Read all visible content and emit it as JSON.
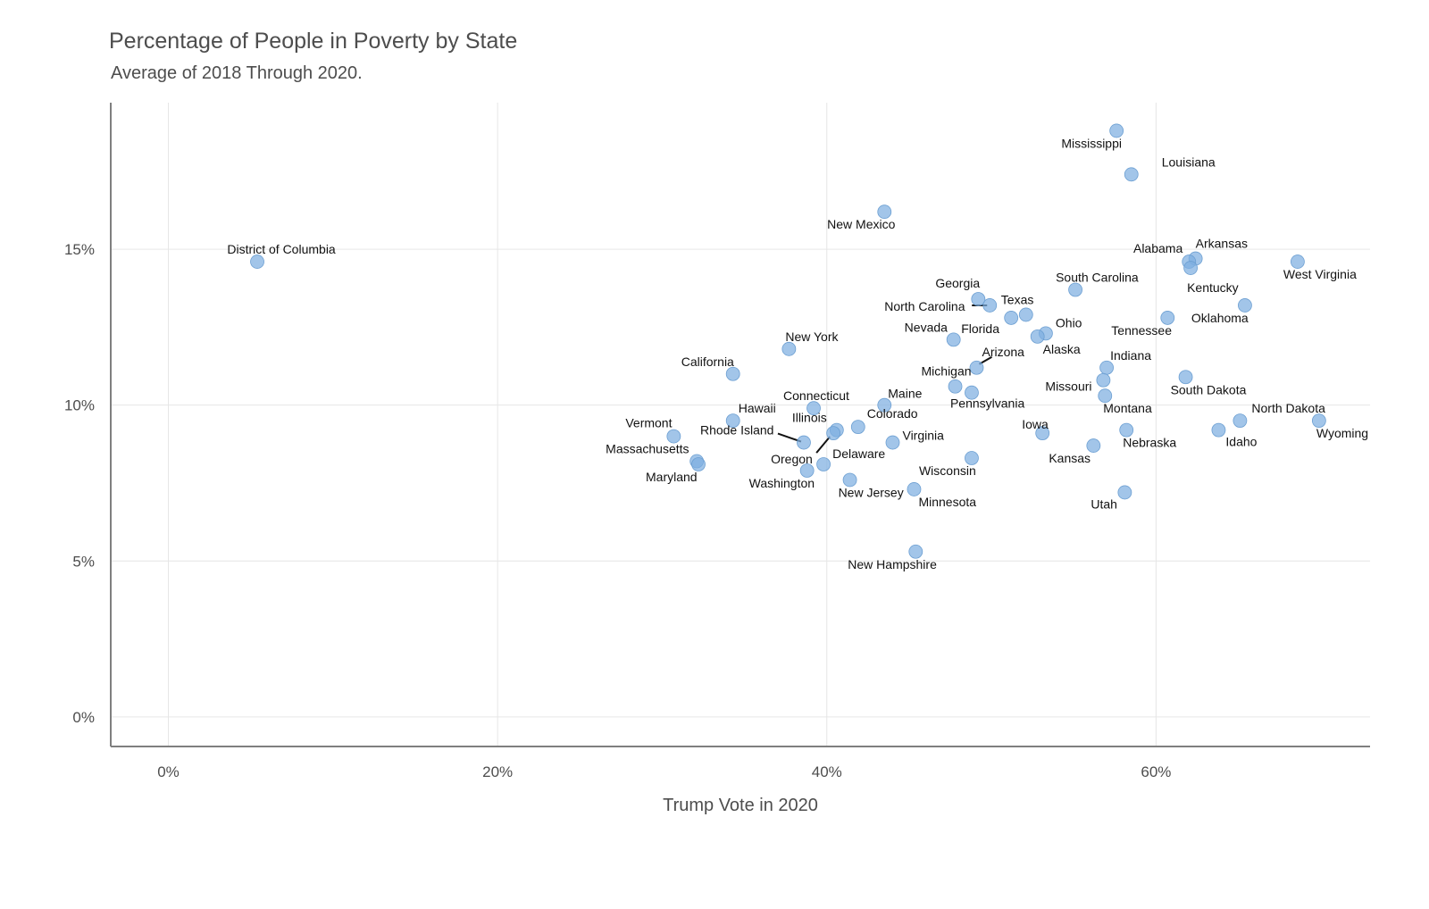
{
  "chart_data": {
    "type": "scatter",
    "title": "Percentage of People in Poverty by State",
    "subtitle": "Average of 2018 Through 2020.",
    "xlabel": "Trump Vote in 2020",
    "ylabel": "",
    "xlim": [
      -3.5,
      73
    ],
    "ylim": [
      -0.95,
      19.7
    ],
    "x_ticks": [
      {
        "value": 0,
        "label": "0%"
      },
      {
        "value": 20,
        "label": "20%"
      },
      {
        "value": 40,
        "label": "40%"
      },
      {
        "value": 60,
        "label": "60%"
      }
    ],
    "y_ticks": [
      {
        "value": 0,
        "label": "0%"
      },
      {
        "value": 5,
        "label": "5%"
      },
      {
        "value": 10,
        "label": "10%"
      },
      {
        "value": 15,
        "label": "15%"
      }
    ],
    "grid": true,
    "point_color": "#7eaee0",
    "points": [
      {
        "label": "District of Columbia",
        "x": 5.4,
        "y": 14.6
      },
      {
        "label": "Mississippi",
        "x": 57.6,
        "y": 18.8
      },
      {
        "label": "Louisiana",
        "x": 58.5,
        "y": 17.4
      },
      {
        "label": "New Mexico",
        "x": 43.5,
        "y": 16.2
      },
      {
        "label": "Arkansas",
        "x": 62.4,
        "y": 14.7
      },
      {
        "label": "Alabama",
        "x": 62.0,
        "y": 14.6
      },
      {
        "label": "Kentucky",
        "x": 62.1,
        "y": 14.4
      },
      {
        "label": "West Virginia",
        "x": 68.6,
        "y": 14.6
      },
      {
        "label": "South Carolina",
        "x": 55.1,
        "y": 13.7
      },
      {
        "label": "Georgia",
        "x": 49.2,
        "y": 13.4
      },
      {
        "label": "North Carolina",
        "x": 49.9,
        "y": 13.2
      },
      {
        "label": "Oklahoma",
        "x": 65.4,
        "y": 13.2
      },
      {
        "label": "Texas",
        "x": 52.1,
        "y": 12.9
      },
      {
        "label": "Florida",
        "x": 51.2,
        "y": 12.8
      },
      {
        "label": "Tennessee",
        "x": 60.7,
        "y": 12.8
      },
      {
        "label": "Ohio",
        "x": 53.3,
        "y": 12.3
      },
      {
        "label": "Alaska",
        "x": 52.8,
        "y": 12.2
      },
      {
        "label": "Nevada",
        "x": 47.7,
        "y": 12.1
      },
      {
        "label": "New York",
        "x": 37.7,
        "y": 11.8
      },
      {
        "label": "Arizona",
        "x": 49.1,
        "y": 11.2
      },
      {
        "label": "Indiana",
        "x": 57.0,
        "y": 11.2
      },
      {
        "label": "California",
        "x": 34.3,
        "y": 11.0
      },
      {
        "label": "South Dakota",
        "x": 61.8,
        "y": 10.9
      },
      {
        "label": "Missouri",
        "x": 56.8,
        "y": 10.8
      },
      {
        "label": "Michigan",
        "x": 47.8,
        "y": 10.6
      },
      {
        "label": "Pennsylvania",
        "x": 48.8,
        "y": 10.4
      },
      {
        "label": "Montana",
        "x": 56.9,
        "y": 10.3
      },
      {
        "label": "Maine",
        "x": 43.5,
        "y": 10.0
      },
      {
        "label": "Connecticut",
        "x": 39.2,
        "y": 9.9
      },
      {
        "label": "Hawaii",
        "x": 34.3,
        "y": 9.5
      },
      {
        "label": "North Dakota",
        "x": 65.1,
        "y": 9.5
      },
      {
        "label": "Wyoming",
        "x": 69.9,
        "y": 9.5
      },
      {
        "label": "Colorado",
        "x": 41.9,
        "y": 9.3
      },
      {
        "label": "Illinois",
        "x": 40.6,
        "y": 9.2
      },
      {
        "label": "Nebraska",
        "x": 58.2,
        "y": 9.2
      },
      {
        "label": "Idaho",
        "x": 63.8,
        "y": 9.2
      },
      {
        "label": "Oregon",
        "x": 40.4,
        "y": 9.1
      },
      {
        "label": "Iowa",
        "x": 53.1,
        "y": 9.1
      },
      {
        "label": "Vermont",
        "x": 30.7,
        "y": 9.0
      },
      {
        "label": "Rhode Island",
        "x": 38.6,
        "y": 8.8
      },
      {
        "label": "Virginia",
        "x": 44.0,
        "y": 8.8
      },
      {
        "label": "Kansas",
        "x": 56.2,
        "y": 8.7
      },
      {
        "label": "Wisconsin",
        "x": 48.8,
        "y": 8.3
      },
      {
        "label": "Massachusetts",
        "x": 32.1,
        "y": 8.2
      },
      {
        "label": "Maryland",
        "x": 32.2,
        "y": 8.1
      },
      {
        "label": "Delaware",
        "x": 39.8,
        "y": 8.1
      },
      {
        "label": "Washington",
        "x": 38.8,
        "y": 7.9
      },
      {
        "label": "New Jersey",
        "x": 41.4,
        "y": 7.6
      },
      {
        "label": "Minnesota",
        "x": 45.3,
        "y": 7.3
      },
      {
        "label": "Utah",
        "x": 58.1,
        "y": 7.2
      },
      {
        "label": "New Hampshire",
        "x": 45.4,
        "y": 5.3
      }
    ]
  }
}
